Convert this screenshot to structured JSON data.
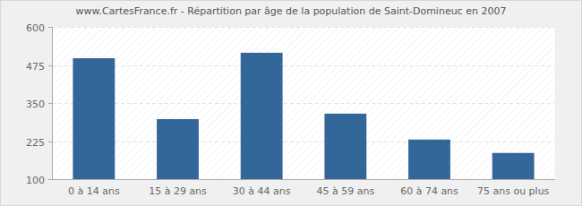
{
  "chart_data": {
    "type": "bar",
    "title": "www.CartesFrance.fr - Répartition par âge de la population de Saint-Domineuc en 2007",
    "categories": [
      "0 à 14 ans",
      "15 à 29 ans",
      "30 à 44 ans",
      "45 à 59 ans",
      "60 à 74 ans",
      "75 ans ou plus"
    ],
    "values": [
      497,
      297,
      515,
      315,
      230,
      186
    ],
    "color": "#336699",
    "ylim": [
      100,
      600
    ],
    "yticks": [
      100,
      225,
      350,
      475,
      600
    ],
    "grid": true
  }
}
